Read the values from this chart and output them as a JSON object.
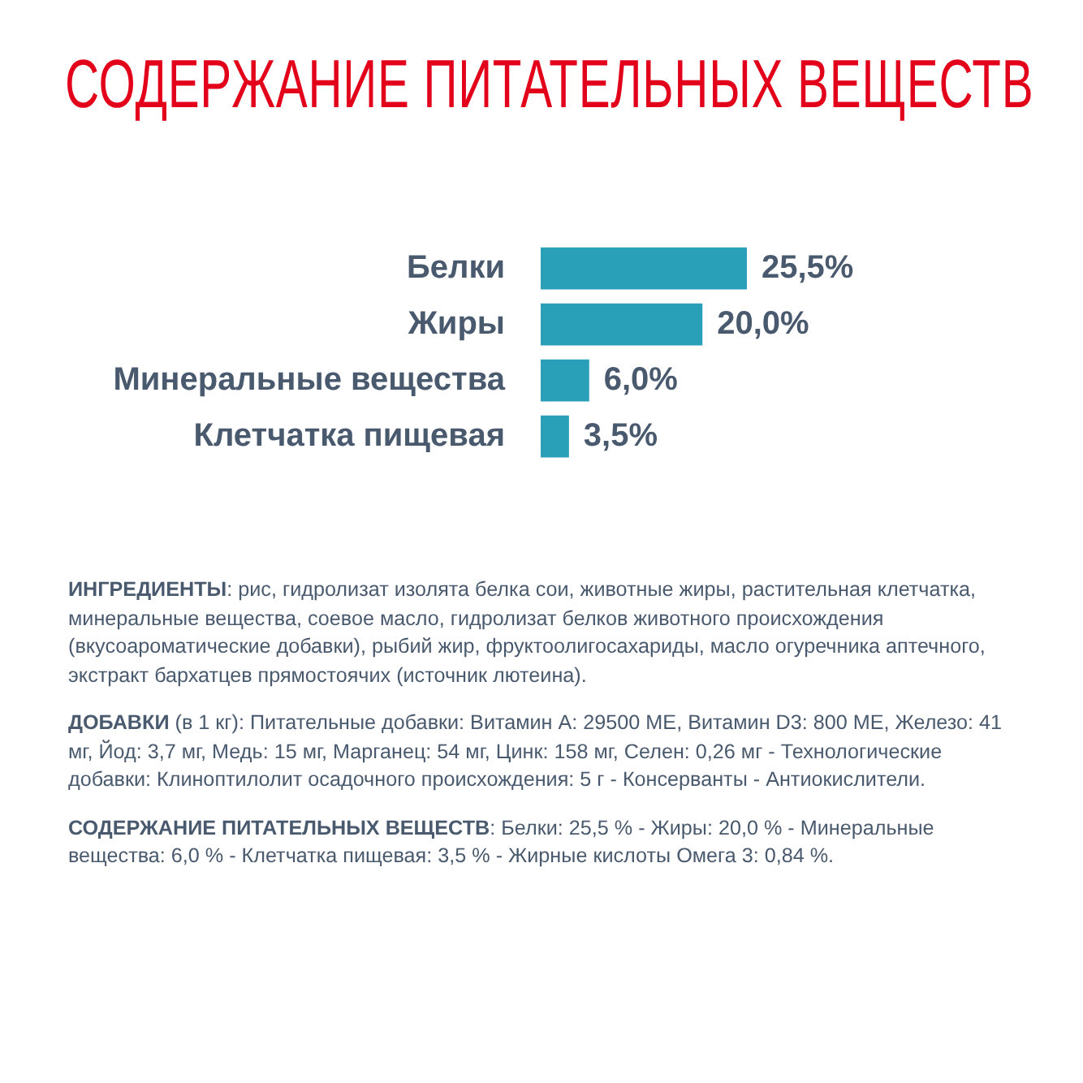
{
  "chart_data": {
    "type": "bar",
    "orientation": "horizontal",
    "title": "СОДЕРЖАНИЕ ПИТАТЕЛЬНЫХ ВЕЩЕСТВ",
    "categories": [
      "Белки",
      "Жиры",
      "Минеральные вещества",
      "Клетчатка пищевая"
    ],
    "values": [
      25.5,
      20.0,
      6.0,
      3.5
    ],
    "value_labels": [
      "25,5%",
      "20,0%",
      "6,0%",
      "3,5%"
    ],
    "color": "#2a9fb8",
    "tick_labels": "y",
    "legend": false,
    "annotations": [
      "ИНГРЕДИЕНТЫ: рис, гидролизат изолята белка сои, животные жиры, растительная клетчатка, минеральные вещества, соевое масло, гидролизат белков животного происхождения (вкусоароматические добавки), рыбий жир, фруктоолигосахариды, масло огуречника аптечного, экстракт бархатцев прямостоячих (источник лютеина).",
      "ДОБАВКИ (в 1 кг): Питательные добавки: Витамин А: 29500 МЕ, Витамин D3: 800 МЕ, Железо: 41 мг, Йод: 3,7 мг, Медь: 15 мг, Марганец: 54 мг, Цинк: 158 мг, Селен: 0,26 мг - Технологические добавки: Клиноптилолит осадочного происхождения: 5 г - Консерванты - Антиокислители.",
      "СОДЕРЖАНИЕ ПИТАТЕЛЬНЫХ ВЕЩЕСТВ: Белки: 25,5 % - Жиры: 20,0 % - Минеральные вещества: 6,0 % - Клетчатка пищевая: 3,5 % - Жирные кислоты Омега 3: 0,84 %."
    ]
  }
}
